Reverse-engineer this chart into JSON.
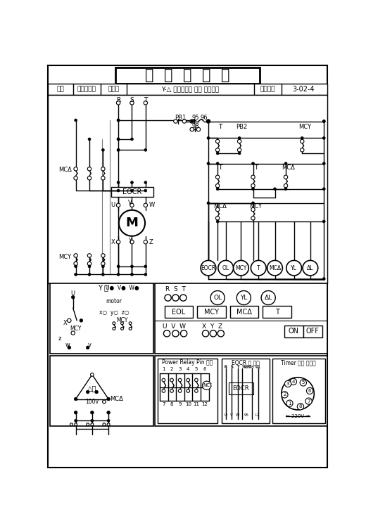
{
  "title": "실  습  지  시  서",
  "field": "직종",
  "field_val": "승강기보수",
  "work_name": "작품명",
  "work_val": "Y-△ 승강기운전 제어 회로구성",
  "work_num": "작품번호",
  "work_num_val": "3-02-4",
  "bg_color": "#ffffff"
}
